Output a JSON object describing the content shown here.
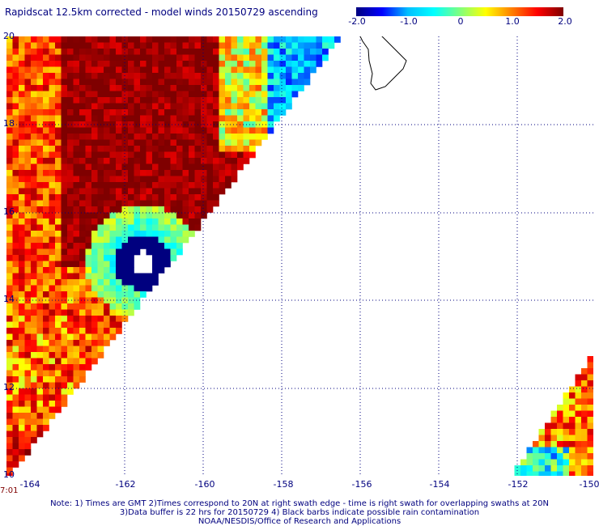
{
  "title": "Rapidscat 12.5km corrected - model winds 20150729 ascending",
  "colorbar": {
    "labels": [
      "-2.0",
      "-1.0",
      "0",
      "1.0",
      "2.0"
    ],
    "min": -2.0,
    "max": 2.0
  },
  "axes": {
    "lon_labels": [
      "-164",
      "-162",
      "-160",
      "-158",
      "-156",
      "-154",
      "-152",
      "-150"
    ],
    "lat_labels": [
      "20",
      "18",
      "16",
      "14",
      "12",
      "10"
    ],
    "lon_range": [
      -164.5,
      -150
    ],
    "lat_range": [
      10,
      20
    ]
  },
  "time_label": "7:01",
  "notes": [
    "Note: 1) Times are GMT 2)Times correspond to 20N at right swath edge - time is right swath for overlapping swaths at 20N",
    "3)Data buffer is 22 hrs for 20150729 4) Black barbs indicate possible rain contamination",
    "NOAA/NESDIS/Office of Research and Applications"
  ],
  "colors": {
    "text": "#00007f",
    "grid": "#00007f",
    "time": "#7f0000"
  }
}
